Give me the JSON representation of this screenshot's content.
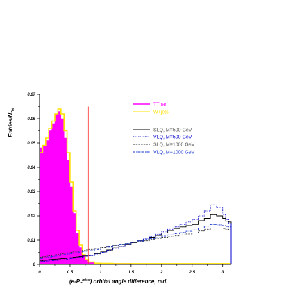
{
  "chart_data": {
    "type": "line",
    "xlabel": "(e-P",
    "xlabel_sub": "T",
    "xlabel_sup": "miss",
    "xlabel_rest": ") orbital angle difference, rad.",
    "ylabel": "Entries/N",
    "ylabel_sub": "Tot",
    "xlim": [
      0,
      3.14
    ],
    "ylim": [
      0,
      0.07
    ],
    "xticks": [
      {
        "v": 0,
        "label": "0"
      },
      {
        "v": 0.5,
        "label": "0.5"
      },
      {
        "v": 1,
        "label": "1"
      },
      {
        "v": 1.5,
        "label": "1.5"
      },
      {
        "v": 2,
        "label": "2"
      },
      {
        "v": 2.5,
        "label": "2.5"
      },
      {
        "v": 3,
        "label": "3"
      }
    ],
    "yticks": [
      {
        "v": 0,
        "label": "0"
      },
      {
        "v": 0.01,
        "label": "0.01"
      },
      {
        "v": 0.02,
        "label": "0.02"
      },
      {
        "v": 0.03,
        "label": "0.03"
      },
      {
        "v": 0.04,
        "label": "0.04"
      },
      {
        "v": 0.05,
        "label": "0.05"
      },
      {
        "v": 0.06,
        "label": "0.06"
      },
      {
        "v": 0.07,
        "label": "0.07"
      }
    ],
    "cut_line_x": 0.8,
    "legend_position": "top-right",
    "x": [
      0.0,
      0.05,
      0.1,
      0.15,
      0.2,
      0.25,
      0.3,
      0.35,
      0.4,
      0.45,
      0.5,
      0.55,
      0.6,
      0.65,
      0.7,
      0.75,
      0.8,
      0.9,
      1.0,
      1.1,
      1.2,
      1.3,
      1.4,
      1.5,
      1.6,
      1.7,
      1.8,
      1.9,
      2.0,
      2.1,
      2.2,
      2.3,
      2.4,
      2.5,
      2.6,
      2.7,
      2.8,
      2.9,
      3.0,
      3.05,
      3.1,
      3.14
    ],
    "series": [
      {
        "name": "TTbar",
        "style": "filled",
        "color": "#ff00ff",
        "values": [
          0.048,
          0.049,
          0.051,
          0.055,
          0.058,
          0.062,
          0.063,
          0.06,
          0.052,
          0.043,
          0.032,
          0.021,
          0.013,
          0.007,
          0.004,
          0.002,
          0.001,
          0.0006,
          0.0005,
          0.0005,
          0.0004,
          0.0004,
          0.0004,
          0.0003,
          0.0003,
          0.0003,
          0.0003,
          0.0003,
          0.0003,
          0.0002,
          0.0002,
          0.0002,
          0.0002,
          0.0002,
          0.0002,
          0.0002,
          0.0002,
          0.0002,
          0.0002,
          0.0002,
          0.0002,
          0.0002
        ]
      },
      {
        "name": "W+jets",
        "style": "solid",
        "color": "#ffe000",
        "values": [
          0.046,
          0.049,
          0.052,
          0.056,
          0.059,
          0.062,
          0.064,
          0.062,
          0.055,
          0.046,
          0.034,
          0.022,
          0.014,
          0.008,
          0.004,
          0.002,
          0.001,
          0.0005,
          0.0004,
          0.0004,
          0.0003,
          0.0003,
          0.0003,
          0.0003,
          0.0003,
          0.0003,
          0.0003,
          0.0003,
          0.0003,
          0.0003,
          0.0003,
          0.0003,
          0.0003,
          0.0003,
          0.0003,
          0.0003,
          0.0003,
          0.0003,
          0.0003,
          0.0003,
          0.0003,
          0.0003
        ]
      },
      {
        "name": "SLQ, M=500 GeV",
        "style": "solid",
        "color": "#000000",
        "values": [
          0.0015,
          0.0017,
          0.0018,
          0.002,
          0.0021,
          0.0022,
          0.0023,
          0.0024,
          0.0025,
          0.0027,
          0.0028,
          0.003,
          0.0031,
          0.0033,
          0.0035,
          0.0037,
          0.0038,
          0.0045,
          0.0052,
          0.006,
          0.0068,
          0.0075,
          0.0082,
          0.009,
          0.0098,
          0.0105,
          0.011,
          0.012,
          0.013,
          0.014,
          0.0148,
          0.0155,
          0.016,
          0.0165,
          0.018,
          0.019,
          0.0205,
          0.02,
          0.019,
          0.0178,
          0.0175,
          0.017
        ]
      },
      {
        "name": "VLQ, M=500 GeV",
        "style": "dotted",
        "color": "#0000cc",
        "values": [
          0.0012,
          0.0013,
          0.0014,
          0.0015,
          0.0016,
          0.0017,
          0.0018,
          0.0019,
          0.002,
          0.0022,
          0.0024,
          0.0026,
          0.0028,
          0.003,
          0.0032,
          0.0034,
          0.0036,
          0.0043,
          0.005,
          0.0058,
          0.0066,
          0.0074,
          0.0082,
          0.009,
          0.0098,
          0.0106,
          0.0115,
          0.0125,
          0.0135,
          0.0145,
          0.0155,
          0.0165,
          0.0175,
          0.0185,
          0.02,
          0.022,
          0.0245,
          0.0235,
          0.0205,
          0.0185,
          0.017,
          0.016
        ]
      },
      {
        "name": "SLQ, M=1000 GeV",
        "style": "dashed",
        "color": "#333333",
        "values": [
          0.003,
          0.0032,
          0.0034,
          0.0036,
          0.0038,
          0.004,
          0.0042,
          0.0044,
          0.0046,
          0.0048,
          0.005,
          0.0052,
          0.0054,
          0.0056,
          0.0058,
          0.006,
          0.0062,
          0.0066,
          0.007,
          0.0074,
          0.0078,
          0.0082,
          0.0086,
          0.009,
          0.0094,
          0.0098,
          0.0102,
          0.0106,
          0.011,
          0.0114,
          0.0118,
          0.0122,
          0.0126,
          0.013,
          0.0138,
          0.0145,
          0.015,
          0.015,
          0.0148,
          0.0145,
          0.0142,
          0.014
        ]
      },
      {
        "name": "VLQ, M=1000 GeV",
        "style": "dashdot",
        "color": "#1133cc",
        "values": [
          0.0025,
          0.0027,
          0.0029,
          0.0031,
          0.0033,
          0.0035,
          0.0037,
          0.0039,
          0.0041,
          0.0043,
          0.0045,
          0.0047,
          0.0049,
          0.0051,
          0.0053,
          0.0055,
          0.0057,
          0.0062,
          0.0067,
          0.0072,
          0.0077,
          0.0082,
          0.0087,
          0.0092,
          0.0097,
          0.0102,
          0.0107,
          0.0112,
          0.0117,
          0.0122,
          0.0127,
          0.0132,
          0.0137,
          0.0142,
          0.015,
          0.0158,
          0.0165,
          0.0163,
          0.016,
          0.0157,
          0.0155,
          0.0152
        ]
      }
    ]
  }
}
